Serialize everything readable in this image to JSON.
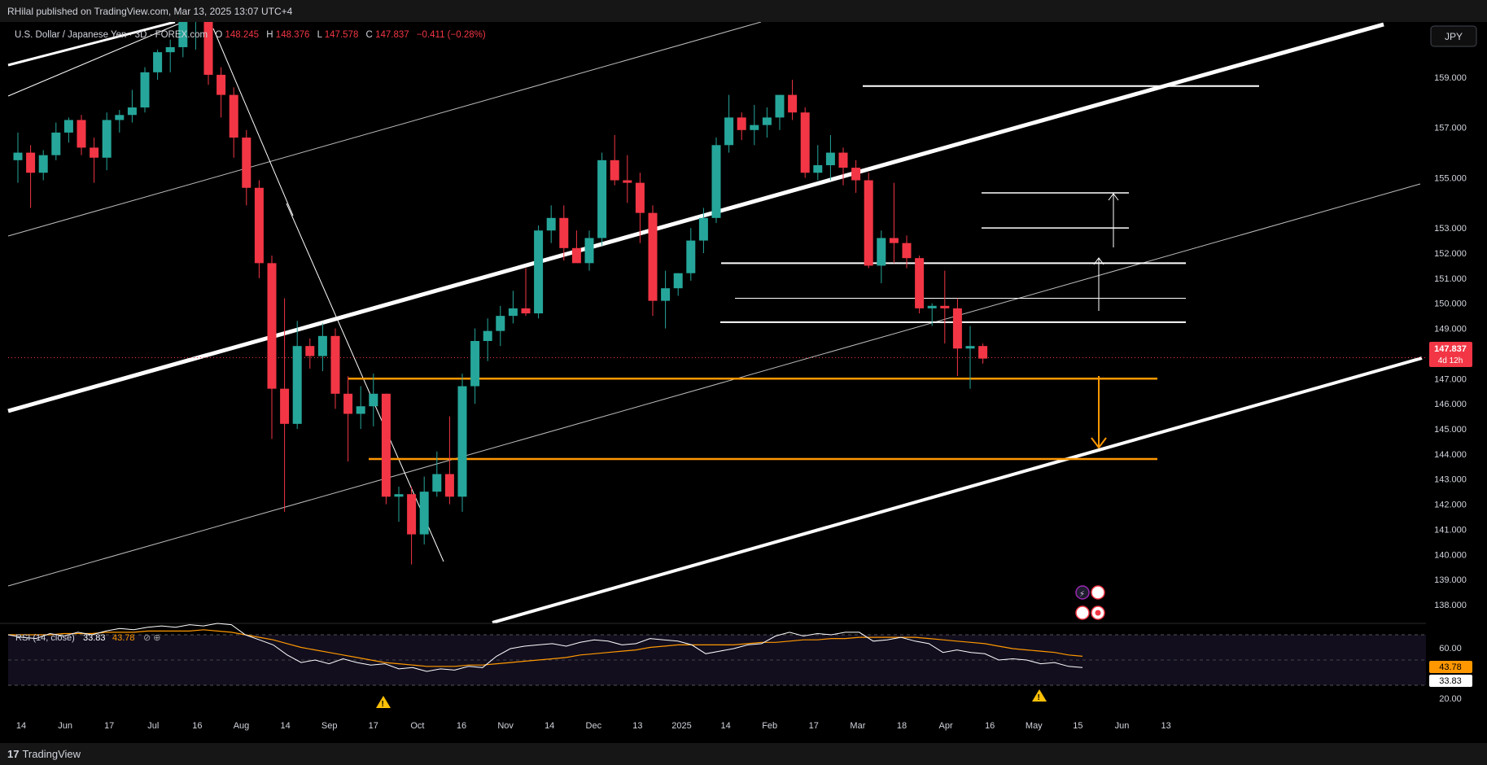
{
  "header": {
    "published": "RHilal published on TradingView.com, Mar 13, 2025 13:07 UTC+4"
  },
  "footer": {
    "brand": "TradingView"
  },
  "currency_button": "JPY",
  "colors": {
    "up": "#26a69a",
    "down": "#f23645",
    "orange": "#ff9800",
    "rsi": "#ffffff",
    "rsi_ma": "#ff9800"
  },
  "chart_data": {
    "type": "candlestick",
    "symbol_line": {
      "name": "U.S. Dollar / Japanese Yen · 3D · FOREX.com",
      "o_label": "O",
      "o": "148.245",
      "h_label": "H",
      "h": "148.376",
      "l_label": "L",
      "l": "147.578",
      "c_label": "C",
      "c": "147.837",
      "change": "−0.411 (−0.28%)"
    },
    "last_price": "147.837",
    "countdown": "4d 12h",
    "price_ticks": [
      "159.000",
      "157.000",
      "155.000",
      "153.000",
      "152.000",
      "151.000",
      "150.000",
      "149.000",
      "147.000",
      "146.000",
      "145.000",
      "144.000",
      "143.000",
      "142.000",
      "141.000",
      "140.000",
      "139.000",
      "138.000"
    ],
    "ylim": [
      137.5,
      160.1
    ],
    "x_labels": [
      "14",
      "Jun",
      "17",
      "Jul",
      "16",
      "Aug",
      "14",
      "Sep",
      "17",
      "Oct",
      "16",
      "Nov",
      "14",
      "Dec",
      "13",
      "2025",
      "14",
      "Feb",
      "17",
      "Mar",
      "18",
      "Apr",
      "16",
      "May",
      "15",
      "Jun",
      "13"
    ],
    "candles": [
      [
        155.7,
        156.8,
        154.8,
        156.0
      ],
      [
        156.0,
        156.3,
        153.8,
        155.2
      ],
      [
        155.2,
        156.1,
        154.9,
        155.9
      ],
      [
        155.9,
        157.2,
        155.7,
        156.8
      ],
      [
        156.8,
        157.4,
        156.4,
        157.3
      ],
      [
        157.3,
        157.5,
        155.9,
        156.2
      ],
      [
        156.2,
        156.6,
        154.8,
        155.8
      ],
      [
        155.8,
        157.6,
        155.3,
        157.3
      ],
      [
        157.3,
        157.7,
        156.8,
        157.5
      ],
      [
        157.5,
        158.5,
        157.2,
        157.8
      ],
      [
        157.8,
        159.4,
        157.6,
        159.2
      ],
      [
        159.2,
        160.1,
        158.9,
        160.0
      ],
      [
        160.0,
        160.5,
        159.2,
        160.2
      ],
      [
        160.2,
        161.7,
        159.8,
        161.3
      ],
      [
        161.3,
        161.9,
        160.1,
        161.5
      ],
      [
        161.5,
        161.9,
        158.7,
        159.1
      ],
      [
        159.1,
        159.4,
        157.4,
        158.3
      ],
      [
        158.3,
        158.6,
        155.8,
        156.6
      ],
      [
        156.6,
        156.9,
        153.9,
        154.6
      ],
      [
        154.6,
        154.9,
        151.0,
        151.6
      ],
      [
        151.6,
        151.9,
        144.6,
        146.6
      ],
      [
        146.6,
        150.2,
        141.7,
        145.2
      ],
      [
        145.2,
        149.3,
        145.0,
        148.3
      ],
      [
        148.3,
        148.6,
        147.4,
        147.9
      ],
      [
        147.9,
        149.2,
        147.3,
        148.7
      ],
      [
        148.7,
        149.0,
        145.8,
        146.4
      ],
      [
        146.4,
        147.1,
        143.7,
        145.6
      ],
      [
        145.6,
        146.7,
        145.0,
        145.9
      ],
      [
        145.9,
        147.2,
        145.1,
        146.4
      ],
      [
        146.4,
        146.4,
        142.0,
        142.3
      ],
      [
        142.3,
        142.7,
        141.3,
        142.4
      ],
      [
        142.4,
        142.7,
        139.6,
        140.8
      ],
      [
        140.8,
        143.1,
        140.4,
        142.5
      ],
      [
        142.5,
        144.1,
        142.3,
        143.2
      ],
      [
        143.2,
        145.5,
        142.0,
        142.3
      ],
      [
        142.3,
        147.2,
        141.7,
        146.7
      ],
      [
        146.7,
        149.0,
        146.0,
        148.5
      ],
      [
        148.5,
        149.4,
        147.7,
        148.9
      ],
      [
        148.9,
        149.9,
        148.3,
        149.5
      ],
      [
        149.5,
        150.5,
        149.2,
        149.8
      ],
      [
        149.8,
        151.4,
        149.5,
        149.6
      ],
      [
        149.6,
        153.1,
        149.4,
        152.9
      ],
      [
        152.9,
        153.9,
        152.4,
        153.4
      ],
      [
        153.4,
        153.9,
        151.7,
        152.2
      ],
      [
        152.2,
        152.9,
        151.7,
        151.6
      ],
      [
        151.6,
        152.9,
        151.3,
        152.6
      ],
      [
        152.6,
        156.0,
        152.3,
        155.7
      ],
      [
        155.7,
        156.7,
        154.7,
        154.9
      ],
      [
        154.9,
        155.9,
        154.0,
        154.8
      ],
      [
        154.8,
        155.2,
        152.4,
        153.6
      ],
      [
        153.6,
        153.9,
        149.5,
        150.1
      ],
      [
        150.1,
        151.3,
        149.0,
        150.6
      ],
      [
        150.6,
        151.2,
        150.3,
        151.2
      ],
      [
        151.2,
        153.0,
        150.9,
        152.5
      ],
      [
        152.5,
        153.8,
        152.0,
        153.4
      ],
      [
        153.4,
        156.6,
        153.2,
        156.3
      ],
      [
        156.3,
        158.3,
        156.0,
        157.4
      ],
      [
        157.4,
        157.6,
        156.5,
        156.9
      ],
      [
        156.9,
        157.9,
        156.3,
        157.1
      ],
      [
        157.1,
        157.8,
        156.6,
        157.4
      ],
      [
        157.4,
        158.3,
        156.9,
        158.3
      ],
      [
        158.3,
        158.9,
        157.3,
        157.6
      ],
      [
        157.6,
        157.8,
        155.0,
        155.2
      ],
      [
        155.2,
        156.3,
        154.9,
        155.5
      ],
      [
        155.5,
        156.7,
        154.9,
        156.0
      ],
      [
        156.0,
        156.2,
        154.7,
        155.4
      ],
      [
        155.4,
        155.7,
        154.4,
        154.9
      ],
      [
        154.9,
        155.2,
        151.4,
        151.5
      ],
      [
        151.5,
        152.9,
        150.8,
        152.6
      ],
      [
        152.6,
        154.8,
        151.6,
        152.4
      ],
      [
        152.4,
        152.7,
        151.4,
        151.8
      ],
      [
        151.8,
        151.9,
        149.6,
        149.8
      ],
      [
        149.8,
        150.0,
        149.1,
        149.9
      ],
      [
        149.9,
        151.3,
        148.4,
        149.8
      ],
      [
        149.8,
        150.2,
        147.1,
        148.2
      ],
      [
        148.2,
        149.1,
        146.6,
        148.3
      ],
      [
        148.3,
        148.4,
        147.6,
        147.8
      ]
    ],
    "levels": {
      "white": [
        158.65,
        151.6,
        150.2,
        149.25
      ],
      "white_short": [
        154.4,
        153.0
      ],
      "orange": [
        147.0,
        143.8
      ]
    },
    "rsi": {
      "label": "RSI (14, close)",
      "value": "33.83",
      "ma_value": "43.78",
      "ticks": [
        "60.00",
        "20.00"
      ],
      "ylim": [
        10,
        72
      ],
      "values": [
        60,
        58,
        57,
        61,
        59,
        62,
        60,
        63,
        65,
        64,
        66,
        67,
        66,
        68,
        67,
        69,
        68,
        60,
        56,
        52,
        44,
        38,
        40,
        37,
        41,
        38,
        36,
        37,
        33,
        34,
        31,
        33,
        32,
        35,
        34,
        43,
        49,
        51,
        52,
        53,
        51,
        54,
        56,
        55,
        52,
        53,
        57,
        56,
        55,
        52,
        45,
        47,
        49,
        52,
        53,
        59,
        62,
        59,
        61,
        60,
        62,
        62,
        55,
        56,
        58,
        55,
        53,
        46,
        48,
        46,
        45,
        40,
        41,
        40,
        37,
        38,
        35,
        34
      ],
      "ma_values": [
        60,
        60,
        60,
        60,
        61,
        61,
        61,
        62,
        62,
        62,
        63,
        63,
        63,
        63,
        64,
        63,
        62,
        60,
        58,
        56,
        53,
        50,
        48,
        46,
        44,
        42,
        40,
        38,
        37,
        36,
        35,
        35,
        35,
        36,
        36,
        37,
        38,
        39,
        40,
        41,
        42,
        44,
        45,
        46,
        47,
        48,
        50,
        51,
        52,
        52,
        52,
        52,
        52,
        53,
        54,
        54,
        55,
        56,
        56,
        57,
        57,
        58,
        58,
        58,
        58,
        58,
        57,
        56,
        55,
        54,
        53,
        51,
        49,
        48,
        47,
        46,
        44,
        43
      ]
    }
  }
}
